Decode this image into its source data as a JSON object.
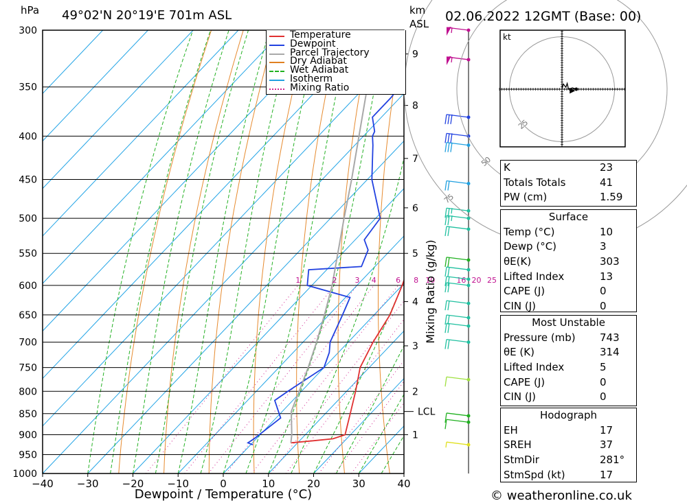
{
  "header": {
    "pressure_unit": "hPa",
    "location": "49°02'N  20°19'E  701m  ASL",
    "km_label": "km",
    "asl_label": "ASL",
    "datetime": "02.06.2022  12GMT  (Base: 00)"
  },
  "footer": {
    "copyright": "© weatheronline.co.uk"
  },
  "chart_data": {
    "type": "skew-t",
    "xlabel": "Dewpoint / Temperature (°C)",
    "ylabel": "hPa",
    "right_axis_label": "Mixing Ratio (g/kg)",
    "xlim": [
      -40,
      40
    ],
    "ylim": [
      1000,
      300
    ],
    "x_ticks": [
      -40,
      -30,
      -20,
      -10,
      0,
      10,
      20,
      30,
      40
    ],
    "pressure_levels": [
      300,
      350,
      400,
      450,
      500,
      550,
      600,
      650,
      700,
      750,
      800,
      850,
      900,
      950,
      1000
    ],
    "km_ticks": [
      {
        "label": "1",
        "p": 900
      },
      {
        "label": "2",
        "p": 800
      },
      {
        "label": "3",
        "p": 707
      },
      {
        "label": "4",
        "p": 627
      },
      {
        "label": "5",
        "p": 550
      },
      {
        "label": "6",
        "p": 486
      },
      {
        "label": "7",
        "p": 425
      },
      {
        "label": "8",
        "p": 368
      },
      {
        "label": "9",
        "p": 320
      }
    ],
    "lcl": {
      "label": "LCL",
      "p": 845
    },
    "mixing_ratio_labels": [
      "1",
      "2",
      "3",
      "4",
      "6",
      "8",
      "10",
      "16",
      "20",
      "25"
    ],
    "mixing_ratio_values": [
      1,
      2,
      3,
      4,
      6,
      8,
      10,
      16,
      20,
      25
    ],
    "legend": [
      {
        "name": "Temperature",
        "color": "#e03030",
        "style": "solid"
      },
      {
        "name": "Dewpoint",
        "color": "#2040e0",
        "style": "solid"
      },
      {
        "name": "Parcel Trajectory",
        "color": "#a8a8a8",
        "style": "solid"
      },
      {
        "name": "Dry Adiabat",
        "color": "#e08020",
        "style": "solid"
      },
      {
        "name": "Wet Adiabat",
        "color": "#20b020",
        "style": "dashed"
      },
      {
        "name": "Isotherm",
        "color": "#20a0e0",
        "style": "solid"
      },
      {
        "name": "Mixing Ratio",
        "color": "#d0208c",
        "style": "dotted"
      }
    ],
    "series": [
      {
        "name": "Temperature",
        "color": "#e03030",
        "points": [
          {
            "p": 920,
            "t": 8.5
          },
          {
            "p": 915,
            "t": 13
          },
          {
            "p": 910,
            "t": 17
          },
          {
            "p": 900,
            "t": 18.8
          },
          {
            "p": 850,
            "t": 15.5
          },
          {
            "p": 800,
            "t": 12
          },
          {
            "p": 750,
            "t": 8
          },
          {
            "p": 700,
            "t": 5.5
          },
          {
            "p": 650,
            "t": 3.5
          },
          {
            "p": 600,
            "t": 0
          },
          {
            "p": 570,
            "t": -2.5
          },
          {
            "p": 550,
            "t": -4.3
          },
          {
            "p": 530,
            "t": -5.5
          },
          {
            "p": 500,
            "t": -9
          },
          {
            "p": 450,
            "t": -15
          },
          {
            "p": 400,
            "t": -21.5
          },
          {
            "p": 350,
            "t": -30
          },
          {
            "p": 300,
            "t": -40
          }
        ]
      },
      {
        "name": "Dewpoint",
        "color": "#2040e0",
        "points": [
          {
            "p": 925,
            "t": 0.5
          },
          {
            "p": 920,
            "t": -1
          },
          {
            "p": 910,
            "t": -0.5
          },
          {
            "p": 860,
            "t": 1
          },
          {
            "p": 820,
            "t": -4
          },
          {
            "p": 800,
            "t": -3
          },
          {
            "p": 750,
            "t": 0
          },
          {
            "p": 720,
            "t": -2
          },
          {
            "p": 700,
            "t": -4
          },
          {
            "p": 650,
            "t": -7
          },
          {
            "p": 620,
            "t": -9
          },
          {
            "p": 600,
            "t": -21
          },
          {
            "p": 575,
            "t": -24
          },
          {
            "p": 570,
            "t": -13
          },
          {
            "p": 545,
            "t": -15
          },
          {
            "p": 530,
            "t": -18
          },
          {
            "p": 500,
            "t": -19
          },
          {
            "p": 450,
            "t": -29
          },
          {
            "p": 410,
            "t": -36
          },
          {
            "p": 400,
            "t": -38
          },
          {
            "p": 395,
            "t": -38.5
          },
          {
            "p": 380,
            "t": -42
          },
          {
            "p": 360,
            "t": -42
          },
          {
            "p": 320,
            "t": -44
          },
          {
            "p": 310,
            "t": -46
          },
          {
            "p": 300,
            "t": -50
          }
        ]
      },
      {
        "name": "Parcel Trajectory",
        "color": "#a8a8a8",
        "points": [
          {
            "p": 920,
            "t": 8.5
          },
          {
            "p": 900,
            "t": 7
          },
          {
            "p": 845,
            "t": 2
          },
          {
            "p": 800,
            "t": -0.5
          },
          {
            "p": 750,
            "t": -3.5
          },
          {
            "p": 700,
            "t": -7
          },
          {
            "p": 650,
            "t": -11
          },
          {
            "p": 600,
            "t": -15.5
          },
          {
            "p": 550,
            "t": -21
          },
          {
            "p": 500,
            "t": -27
          },
          {
            "p": 450,
            "t": -33.5
          },
          {
            "p": 400,
            "t": -41
          },
          {
            "p": 350,
            "t": -49.5
          },
          {
            "p": 300,
            "t": -59
          }
        ]
      }
    ],
    "wind_barbs": [
      {
        "p": 300,
        "color": "#c01090",
        "flags": 1,
        "full": 0,
        "half": 1
      },
      {
        "p": 325,
        "color": "#c01090",
        "flags": 1,
        "full": 0,
        "half": 1
      },
      {
        "p": 380,
        "color": "#2040e0",
        "flags": 0,
        "full": 3,
        "half": 0
      },
      {
        "p": 400,
        "color": "#2040e0",
        "flags": 0,
        "full": 3,
        "half": 0
      },
      {
        "p": 410,
        "color": "#20a0e0",
        "flags": 0,
        "full": 3,
        "half": 0
      },
      {
        "p": 455,
        "color": "#20a0e0",
        "flags": 0,
        "full": 2,
        "half": 0
      },
      {
        "p": 490,
        "color": "#20c0a0",
        "flags": 0,
        "full": 2,
        "half": 1
      },
      {
        "p": 500,
        "color": "#20c0a0",
        "flags": 0,
        "full": 2,
        "half": 1
      },
      {
        "p": 515,
        "color": "#20c0a0",
        "flags": 0,
        "full": 2,
        "half": 0
      },
      {
        "p": 560,
        "color": "#20b020",
        "flags": 0,
        "full": 2,
        "half": 0
      },
      {
        "p": 575,
        "color": "#20c0a0",
        "flags": 0,
        "full": 2,
        "half": 0
      },
      {
        "p": 590,
        "color": "#20c0a0",
        "flags": 0,
        "full": 2,
        "half": 0
      },
      {
        "p": 600,
        "color": "#20c0a0",
        "flags": 0,
        "full": 2,
        "half": 0
      },
      {
        "p": 630,
        "color": "#20c0a0",
        "flags": 0,
        "full": 2,
        "half": 0
      },
      {
        "p": 655,
        "color": "#20c0a0",
        "flags": 0,
        "full": 2,
        "half": 0
      },
      {
        "p": 670,
        "color": "#20c0a0",
        "flags": 0,
        "full": 2,
        "half": 0
      },
      {
        "p": 700,
        "color": "#20c0a0",
        "flags": 0,
        "full": 2,
        "half": 0
      },
      {
        "p": 775,
        "color": "#a0e040",
        "flags": 0,
        "full": 1,
        "half": 0
      },
      {
        "p": 855,
        "color": "#20b020",
        "flags": 0,
        "full": 1,
        "half": 0
      },
      {
        "p": 870,
        "color": "#20b020",
        "flags": 0,
        "full": 1,
        "half": 0
      },
      {
        "p": 925,
        "color": "#e0e020",
        "flags": 0,
        "full": 0,
        "half": 1
      }
    ],
    "hodograph": {
      "unit": "kt",
      "ring_labels": [
        "25",
        "50",
        "75"
      ],
      "points": [
        [
          0,
          0
        ],
        [
          2,
          8
        ],
        [
          6,
          3
        ],
        [
          8,
          9
        ],
        [
          10,
          0
        ],
        [
          16,
          2
        ],
        [
          22,
          0
        ]
      ],
      "storm_motion": [
        11,
        -2
      ]
    },
    "indices": {
      "general": [
        {
          "label": "K",
          "value": "23"
        },
        {
          "label": "Totals Totals",
          "value": "41"
        },
        {
          "label": "PW (cm)",
          "value": "1.59"
        }
      ],
      "surface_title": "Surface",
      "surface": [
        {
          "label": "Temp (°C)",
          "value": "10"
        },
        {
          "label": "Dewp (°C)",
          "value": "3"
        },
        {
          "label": "θE(K)",
          "value": "303"
        },
        {
          "label": "Lifted Index",
          "value": "13"
        },
        {
          "label": "CAPE (J)",
          "value": "0"
        },
        {
          "label": "CIN (J)",
          "value": "0"
        }
      ],
      "most_unstable_title": "Most Unstable",
      "most_unstable": [
        {
          "label": "Pressure (mb)",
          "value": "743"
        },
        {
          "label": "θE (K)",
          "value": "314"
        },
        {
          "label": "Lifted Index",
          "value": "5"
        },
        {
          "label": "CAPE (J)",
          "value": "0"
        },
        {
          "label": "CIN (J)",
          "value": "0"
        }
      ],
      "hodograph_title": "Hodograph",
      "hodograph": [
        {
          "label": "EH",
          "value": "17"
        },
        {
          "label": "SREH",
          "value": "37"
        },
        {
          "label": "StmDir",
          "value": "281°"
        },
        {
          "label": "StmSpd (kt)",
          "value": "17"
        }
      ]
    }
  }
}
